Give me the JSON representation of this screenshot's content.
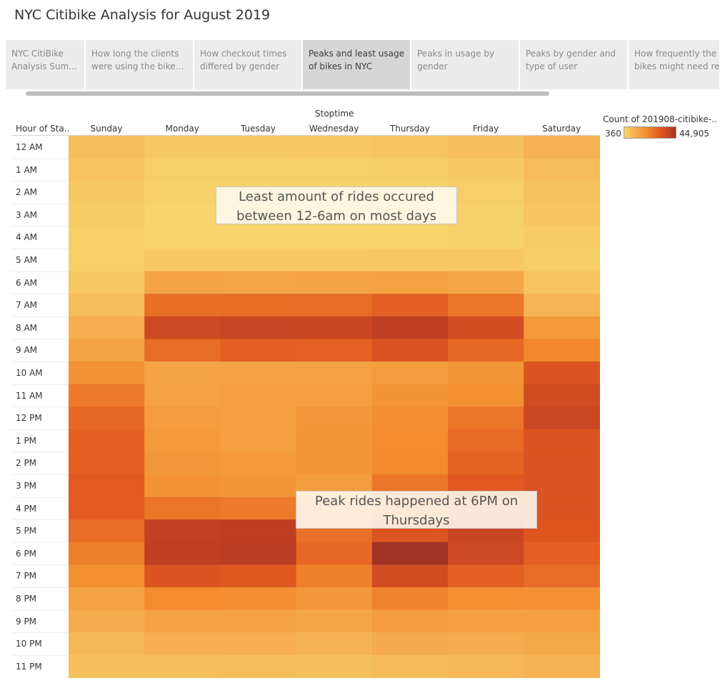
{
  "page": {
    "title": "NYC Citibike Analysis for August 2019"
  },
  "story_tabs": [
    {
      "line1": "NYC CitiBike",
      "line2": "Analysis Summa..",
      "active": false
    },
    {
      "line1": "How long the clients",
      "line2": "were using the bikes f..",
      "active": false
    },
    {
      "line1": "How checkout times",
      "line2": "differed by gender",
      "active": false
    },
    {
      "line1": "Peaks and least usage",
      "line2": "of bikes in NYC",
      "active": true
    },
    {
      "line1": "Peaks in usage by",
      "line2": "gender",
      "active": false
    },
    {
      "line1": "Peaks by gender and",
      "line2": "type of user",
      "active": false
    },
    {
      "line1": "How frequently the",
      "line2": "bikes might need re..",
      "active": false
    }
  ],
  "chart_data": {
    "type": "heatmap",
    "column_title": "Stoptime",
    "row_header": "Hour of Sta..",
    "x": [
      "Sunday",
      "Monday",
      "Tuesday",
      "Wednesday",
      "Thursday",
      "Friday",
      "Saturday"
    ],
    "y": [
      "12 AM",
      "1 AM",
      "2 AM",
      "3 AM",
      "4 AM",
      "5 AM",
      "6 AM",
      "7 AM",
      "8 AM",
      "9 AM",
      "10 AM",
      "11 AM",
      "12 PM",
      "1 PM",
      "2 PM",
      "3 PM",
      "4 PM",
      "5 PM",
      "6 PM",
      "7 PM",
      "8 PM",
      "9 PM",
      "10 PM",
      "11 PM"
    ],
    "values": [
      [
        6000,
        3500,
        3500,
        3700,
        4200,
        5500,
        9000
      ],
      [
        4800,
        2000,
        2000,
        2100,
        2500,
        3300,
        6500
      ],
      [
        3500,
        1200,
        1200,
        1300,
        1500,
        2200,
        5000
      ],
      [
        2800,
        900,
        900,
        900,
        1000,
        1500,
        4000
      ],
      [
        2200,
        800,
        800,
        800,
        900,
        1200,
        3000
      ],
      [
        2200,
        3500,
        3300,
        3500,
        3700,
        3800,
        2500
      ],
      [
        3500,
        13000,
        12500,
        13000,
        13500,
        12000,
        4500
      ],
      [
        6000,
        26000,
        26500,
        27000,
        30000,
        25000,
        8000
      ],
      [
        10000,
        37000,
        38500,
        38000,
        40500,
        36000,
        16000
      ],
      [
        13000,
        27000,
        30000,
        29500,
        34000,
        28000,
        21000
      ],
      [
        18000,
        13000,
        13500,
        13500,
        15000,
        17000,
        33000
      ],
      [
        24000,
        13500,
        14000,
        14000,
        17500,
        19000,
        36000
      ],
      [
        28000,
        15000,
        14500,
        16500,
        19500,
        25000,
        37500
      ],
      [
        30000,
        16000,
        14500,
        17000,
        20000,
        27500,
        33000
      ],
      [
        30000,
        16500,
        16000,
        17000,
        20500,
        29000,
        33000
      ],
      [
        31000,
        18000,
        17000,
        15000,
        25000,
        31500,
        33000
      ],
      [
        31000,
        25000,
        24000,
        22000,
        28000,
        33500,
        33000
      ],
      [
        27000,
        40000,
        40500,
        26000,
        33000,
        38000,
        32500
      ],
      [
        23000,
        40500,
        41000,
        28000,
        44905,
        37000,
        30000
      ],
      [
        19000,
        33000,
        32000,
        22500,
        36000,
        30000,
        27000
      ],
      [
        13500,
        20000,
        19500,
        16500,
        22000,
        19000,
        18500
      ],
      [
        10500,
        13500,
        13500,
        12000,
        15000,
        14000,
        14000
      ],
      [
        7500,
        9500,
        10000,
        8500,
        11000,
        10500,
        11500
      ],
      [
        5500,
        6000,
        6500,
        5500,
        7000,
        7500,
        8500
      ]
    ],
    "color_range": [
      360,
      44905
    ],
    "legend": {
      "title": "Count of 201908-citibike-..",
      "min_label": "360",
      "max_label": "44,905"
    },
    "annotations": [
      {
        "id": "least",
        "text": "Least amount of rides occured between 12-6am on most days"
      },
      {
        "id": "peak",
        "text": "Peak rides happened at 6PM on Thursdays"
      }
    ]
  }
}
